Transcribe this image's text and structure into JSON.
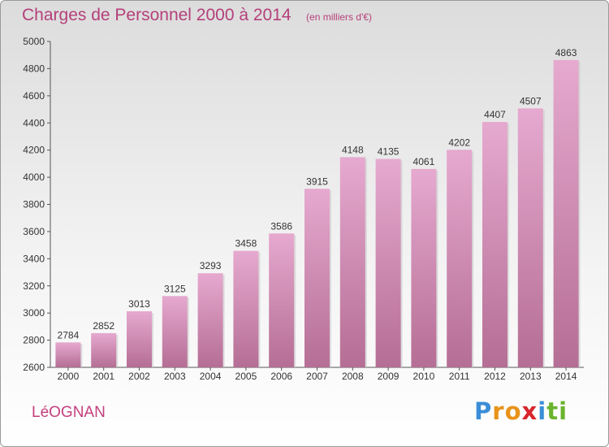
{
  "title": "Charges de Personnel 2000 à 2014",
  "subtitle": "(en milliers d'€)",
  "commune": "LéOGNAN",
  "brand": {
    "letters": [
      {
        "char": "P",
        "color": "#3b8ed8"
      },
      {
        "char": "r",
        "color": "#e8931a"
      },
      {
        "char": "o",
        "color": "#e8931a"
      },
      {
        "char": "x",
        "color": "#d8262c"
      },
      {
        "char": "i",
        "color": "#3b8ed8"
      },
      {
        "char": "t",
        "color": "#6ab42d"
      },
      {
        "char": "i",
        "color": "#6ab42d"
      }
    ]
  },
  "chart_data": {
    "type": "bar",
    "title": "Charges de Personnel 2000 à 2014",
    "subtitle": "(en milliers d'€)",
    "categories": [
      "2000",
      "2001",
      "2002",
      "2003",
      "2004",
      "2005",
      "2006",
      "2007",
      "2008",
      "2009",
      "2010",
      "2011",
      "2012",
      "2013",
      "2014"
    ],
    "values": [
      2784,
      2852,
      3013,
      3125,
      3293,
      3458,
      3586,
      3915,
      4148,
      4135,
      4061,
      4202,
      4407,
      4507,
      4863
    ],
    "ylim": [
      2600,
      5000
    ],
    "yticks": [
      2600,
      2800,
      3000,
      3200,
      3400,
      3600,
      3800,
      4000,
      4200,
      4400,
      4600,
      4800,
      5000
    ],
    "data_labels": true,
    "grid": false,
    "bar_color_top": "#e6a9cf",
    "bar_color_bottom": "#b56e95"
  }
}
